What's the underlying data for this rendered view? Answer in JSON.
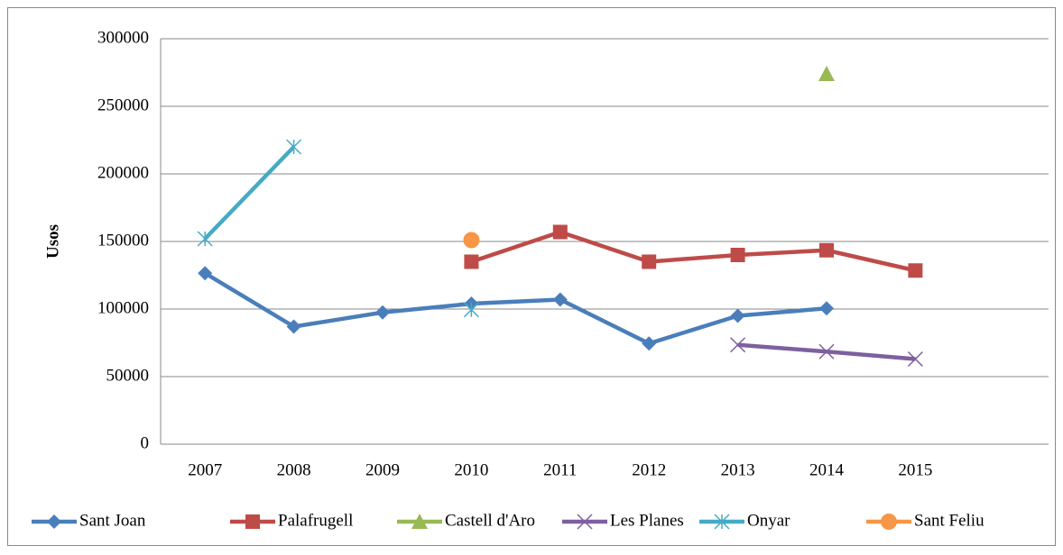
{
  "chart_data": {
    "type": "line",
    "y_label": "Usos",
    "categories": [
      "2007",
      "2008",
      "2009",
      "2010",
      "2011",
      "2012",
      "2013",
      "2014",
      "2015",
      null
    ],
    "series": [
      {
        "name": "Sant Joan",
        "color": "#4a7ebb",
        "marker": "diamond",
        "values": [
          126500,
          87000,
          97500,
          104000,
          107000,
          74500,
          95000,
          100500,
          null,
          null
        ]
      },
      {
        "name": "Palafrugell",
        "color": "#be4b48",
        "marker": "square",
        "values": [
          null,
          null,
          null,
          135000,
          157000,
          135000,
          140000,
          143500,
          128500,
          null
        ]
      },
      {
        "name": "Castell d'Aro",
        "color": "#98b954",
        "marker": "triangle",
        "values": [
          null,
          null,
          null,
          null,
          null,
          null,
          null,
          274000,
          null,
          null
        ]
      },
      {
        "name": "Les Planes",
        "color": "#7d60a0",
        "marker": "x",
        "values": [
          null,
          null,
          null,
          null,
          null,
          null,
          73500,
          68500,
          63000,
          null
        ]
      },
      {
        "name": "Onyar",
        "color": "#46aac5",
        "marker": "star",
        "values": [
          152000,
          220000,
          null,
          99500,
          null,
          null,
          null,
          null,
          null,
          null
        ]
      },
      {
        "name": "Sant Feliu",
        "color": "#f79646",
        "marker": "circle",
        "values": [
          null,
          null,
          null,
          151000,
          null,
          null,
          null,
          null,
          null,
          null
        ]
      }
    ],
    "ylim": [
      0,
      300000
    ],
    "yticks": [
      0,
      50000,
      100000,
      150000,
      200000,
      250000,
      300000
    ],
    "grid": true,
    "legend": "bottom"
  }
}
